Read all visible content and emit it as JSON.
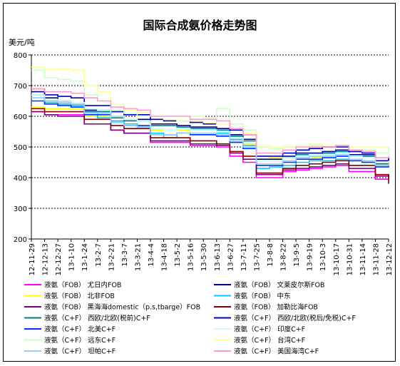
{
  "chart_data": {
    "type": "line",
    "title": "国际合成氨价格走势图",
    "ylabel": "美元/吨",
    "ylim": [
      200,
      800
    ],
    "yticks": [
      "200",
      "300",
      "400",
      "500",
      "600",
      "700",
      "800"
    ],
    "grid": "horizontal-dotted",
    "legend_position": "bottom",
    "x": [
      "12-11-29",
      "12-12-13",
      "12-12-27",
      "13-1-10",
      "13-1-24",
      "13-2-7",
      "13-2-21",
      "13-3-7",
      "13-3-21",
      "13-4-4",
      "13-4-18",
      "13-5-2",
      "13-5-16",
      "13-5-30",
      "13-6-13",
      "13-6-27",
      "13-7-11",
      "13-7-25",
      "13-8-8",
      "13-8-22",
      "13-9-5",
      "13-9-19",
      "13-10-3",
      "13-10-17",
      "13-10-31",
      "13-11-14",
      "13-11-28",
      "13-12-12"
    ],
    "series": [
      {
        "name": "液氨（FOB）  尤日内FOB",
        "color": "#ff00ff",
        "values": [
          615,
          605,
          605,
          605,
          575,
          575,
          555,
          545,
          545,
          515,
          515,
          515,
          505,
          505,
          500,
          470,
          450,
          400,
          400,
          420,
          425,
          430,
          435,
          440,
          420,
          420,
          395,
          410
        ]
      },
      {
        "name": "液氨（FOB）  文莱皮尔斯FOB",
        "color": "#000080",
        "values": [
          680,
          660,
          650,
          640,
          620,
          620,
          600,
          590,
          590,
          575,
          575,
          570,
          565,
          565,
          560,
          540,
          525,
          460,
          460,
          470,
          480,
          480,
          485,
          490,
          475,
          475,
          445,
          465
        ]
      },
      {
        "name": "液氨（FOB）  北非FOB",
        "color": "#ffff00",
        "values": [
          630,
          625,
          625,
          625,
          600,
          600,
          580,
          575,
          570,
          555,
          555,
          555,
          545,
          545,
          540,
          525,
          510,
          470,
          465,
          465,
          465,
          465,
          470,
          475,
          455,
          450,
          440,
          455
        ]
      },
      {
        "name": "液氨（FOB）  中东",
        "color": "#00ccff",
        "values": [
          660,
          645,
          640,
          635,
          610,
          595,
          585,
          575,
          565,
          545,
          530,
          545,
          540,
          540,
          545,
          525,
          505,
          430,
          435,
          440,
          450,
          455,
          455,
          460,
          455,
          450,
          440,
          440
        ]
      },
      {
        "name": "液氨（FOB）  黑海海domestic（p.s,tbarge）FOB",
        "color": "#800080",
        "values": [
          615,
          605,
          600,
          600,
          575,
          575,
          555,
          545,
          545,
          520,
          520,
          520,
          510,
          510,
          505,
          480,
          460,
          410,
          410,
          425,
          430,
          435,
          440,
          445,
          430,
          430,
          405,
          410
        ]
      },
      {
        "name": "液氨（FOB）  加勒比海FOB",
        "color": "#800000",
        "values": [
          625,
          615,
          615,
          615,
          590,
          590,
          570,
          560,
          560,
          530,
          530,
          530,
          520,
          520,
          510,
          485,
          470,
          415,
          415,
          430,
          440,
          445,
          450,
          455,
          440,
          440,
          410,
          380
        ]
      },
      {
        "name": "液氨（C+F）  西欧/北欧(税前)C+F",
        "color": "#008080",
        "values": [
          670,
          650,
          645,
          640,
          615,
          615,
          595,
          585,
          585,
          570,
          570,
          565,
          560,
          560,
          555,
          535,
          520,
          455,
          455,
          465,
          475,
          475,
          480,
          485,
          470,
          470,
          445,
          445
        ]
      },
      {
        "name": "液氨（C+F）  西欧/北欧(税后/免税)C+F",
        "color": "#0000cc",
        "values": [
          690,
          670,
          665,
          660,
          635,
          635,
          615,
          605,
          605,
          590,
          585,
          585,
          580,
          575,
          575,
          555,
          540,
          470,
          470,
          480,
          490,
          495,
          500,
          500,
          485,
          480,
          455,
          460
        ]
      },
      {
        "name": "液氨（C+F）  北美C+F",
        "color": "#0033ff",
        "values": [
          650,
          640,
          635,
          630,
          605,
          605,
          580,
          570,
          570,
          540,
          540,
          545,
          540,
          540,
          535,
          515,
          495,
          440,
          440,
          450,
          460,
          460,
          465,
          470,
          455,
          450,
          435,
          440
        ]
      },
      {
        "name": "液氨（C+F）  印度C+F",
        "color": "#ccffff",
        "values": [
          670,
          655,
          650,
          645,
          625,
          620,
          600,
          590,
          585,
          560,
          555,
          560,
          555,
          555,
          550,
          530,
          515,
          455,
          455,
          465,
          470,
          475,
          475,
          480,
          470,
          465,
          450,
          455
        ]
      },
      {
        "name": "液氨（C+F）  远东C+F",
        "color": "#ccffcc",
        "values": [
          750,
          725,
          720,
          715,
          670,
          650,
          620,
          610,
          600,
          600,
          590,
          585,
          600,
          595,
          625,
          575,
          555,
          500,
          495,
          500,
          505,
          505,
          505,
          505,
          490,
          490,
          480,
          500
        ]
      },
      {
        "name": "液氨（C+F）  台湾C+F",
        "color": "#ffff99",
        "values": [
          760,
          755,
          755,
          750,
          700,
          680,
          640,
          620,
          610,
          600,
          590,
          585,
          585,
          580,
          575,
          560,
          545,
          505,
          500,
          505,
          505,
          510,
          505,
          505,
          500,
          500,
          500,
          500
        ]
      },
      {
        "name": "液氨（C+F）  坦帕C+F",
        "color": "#99ccff",
        "values": [
          660,
          650,
          645,
          640,
          610,
          610,
          580,
          570,
          565,
          540,
          540,
          545,
          545,
          545,
          540,
          520,
          500,
          445,
          445,
          455,
          465,
          470,
          470,
          475,
          460,
          455,
          440,
          445
        ]
      },
      {
        "name": "液氨（C+F）  美国海湾C+F",
        "color": "#ff99cc",
        "values": [
          690,
          680,
          680,
          675,
          660,
          650,
          630,
          625,
          620,
          600,
          600,
          600,
          590,
          590,
          585,
          560,
          540,
          480,
          480,
          490,
          500,
          500,
          500,
          505,
          490,
          485,
          465,
          470
        ]
      }
    ]
  }
}
